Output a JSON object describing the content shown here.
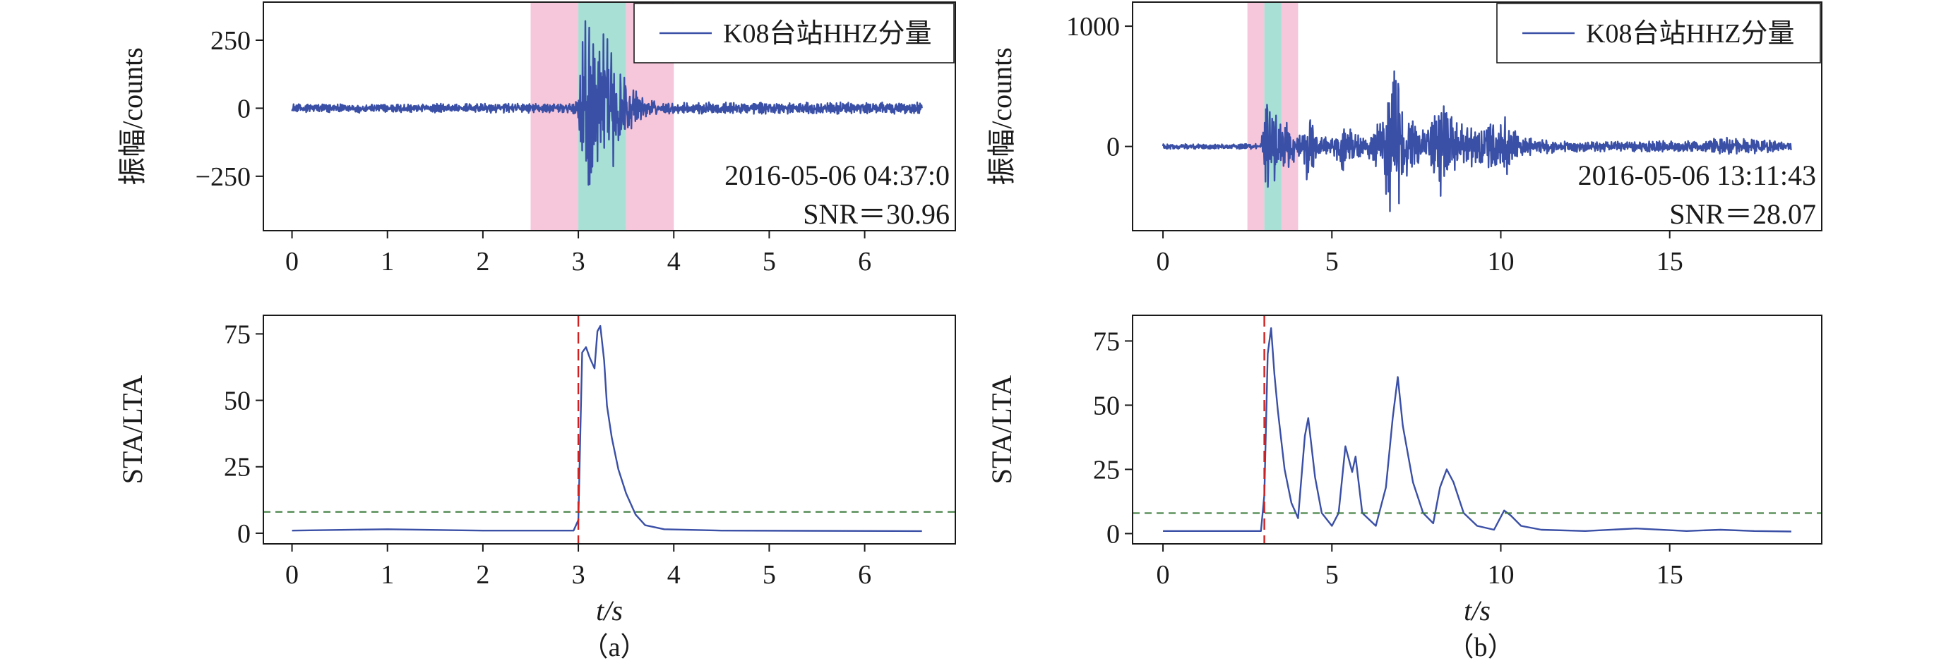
{
  "figure": {
    "captions": [
      "（a）",
      "（b）"
    ]
  },
  "chart_data": [
    {
      "id": "a-top",
      "type": "line",
      "ylabel": "振幅/counts",
      "xlim": [
        -0.3,
        6.95
      ],
      "ylim": [
        -450,
        390
      ],
      "xticks": [
        0,
        1,
        2,
        3,
        4,
        5,
        6
      ],
      "yticks": [
        250,
        0,
        -250
      ],
      "ytick_labels": [
        "250",
        "0",
        "−250"
      ],
      "legend": {
        "label": "K08台站HHZ分量",
        "position": "top-right"
      },
      "annotations": [
        "2016-05-06 04:37:0",
        "SNR＝30.96"
      ],
      "shaded_windows": [
        {
          "x": [
            2.5,
            3.0
          ],
          "color": "#f6c6da"
        },
        {
          "x": [
            3.0,
            3.5
          ],
          "color": "#a8e0d6"
        },
        {
          "x": [
            3.5,
            4.0
          ],
          "color": "#f6c6da"
        }
      ],
      "series": [
        {
          "color": "#3a4fa6",
          "duration": 6.6,
          "envelope": [
            {
              "t": 0,
              "a": 17
            },
            {
              "t": 2.9,
              "a": 18
            },
            {
              "t": 3.0,
              "a": 40
            },
            {
              "t": 3.05,
              "a": 330
            },
            {
              "t": 3.2,
              "a": 330
            },
            {
              "t": 3.35,
              "a": 230
            },
            {
              "t": 3.5,
              "a": 100
            },
            {
              "t": 3.7,
              "a": 40
            },
            {
              "t": 3.9,
              "a": 22
            },
            {
              "t": 6.6,
              "a": 22
            }
          ]
        }
      ]
    },
    {
      "id": "a-bottom",
      "type": "line",
      "xlabel": "t/s",
      "ylabel": "STA/LTA",
      "xlim": [
        -0.3,
        6.95
      ],
      "ylim": [
        -4,
        82
      ],
      "xticks": [
        0,
        1,
        2,
        3,
        4,
        5,
        6
      ],
      "yticks": [
        0,
        25,
        50,
        75
      ],
      "threshold": {
        "y": 8,
        "color": "#3a7a3a"
      },
      "trigger": {
        "x": 3.0,
        "color": "#d02020"
      },
      "series": [
        {
          "color": "#3a4fa6",
          "duration": 6.6,
          "points": [
            [
              0,
              1
            ],
            [
              1,
              1.5
            ],
            [
              2,
              1
            ],
            [
              2.95,
              1
            ],
            [
              3.0,
              5
            ],
            [
              3.04,
              68
            ],
            [
              3.08,
              70
            ],
            [
              3.12,
              66
            ],
            [
              3.17,
              62
            ],
            [
              3.2,
              76
            ],
            [
              3.23,
              78
            ],
            [
              3.27,
              65
            ],
            [
              3.3,
              48
            ],
            [
              3.35,
              36
            ],
            [
              3.42,
              24
            ],
            [
              3.5,
              15
            ],
            [
              3.6,
              7
            ],
            [
              3.7,
              3
            ],
            [
              3.9,
              1.5
            ],
            [
              4.5,
              1
            ],
            [
              6.6,
              0.8
            ]
          ]
        }
      ]
    },
    {
      "id": "b-top",
      "type": "line",
      "ylabel": "振幅/counts",
      "xlim": [
        -0.9,
        19.5
      ],
      "ylim": [
        -700,
        1200
      ],
      "xticks": [
        0,
        5,
        10,
        15
      ],
      "yticks": [
        1000,
        0
      ],
      "legend": {
        "label": "K08台站HHZ分量",
        "position": "top-right"
      },
      "annotations": [
        "2016-05-06 13:11:43",
        "SNR＝28.07"
      ],
      "shaded_windows": [
        {
          "x": [
            2.5,
            3.0
          ],
          "color": "#f6c6da"
        },
        {
          "x": [
            3.0,
            3.5
          ],
          "color": "#a8e0d6"
        },
        {
          "x": [
            3.5,
            4.0
          ],
          "color": "#f6c6da"
        }
      ],
      "series": [
        {
          "color": "#3a4fa6",
          "duration": 18.6,
          "envelope": [
            {
              "t": 0,
              "a": 20
            },
            {
              "t": 2.9,
              "a": 25
            },
            {
              "t": 3.05,
              "a": 420
            },
            {
              "t": 3.4,
              "a": 300
            },
            {
              "t": 3.8,
              "a": 150
            },
            {
              "t": 4.1,
              "a": 80
            },
            {
              "t": 4.3,
              "a": 380
            },
            {
              "t": 4.5,
              "a": 120
            },
            {
              "t": 5.0,
              "a": 60
            },
            {
              "t": 5.3,
              "a": 250
            },
            {
              "t": 5.6,
              "a": 140
            },
            {
              "t": 6.0,
              "a": 80
            },
            {
              "t": 6.5,
              "a": 300
            },
            {
              "t": 6.9,
              "a": 900
            },
            {
              "t": 7.1,
              "a": 300
            },
            {
              "t": 7.8,
              "a": 120
            },
            {
              "t": 8.2,
              "a": 450
            },
            {
              "t": 8.6,
              "a": 250
            },
            {
              "t": 9.5,
              "a": 150
            },
            {
              "t": 10.2,
              "a": 320
            },
            {
              "t": 10.6,
              "a": 80
            },
            {
              "t": 12.0,
              "a": 45
            },
            {
              "t": 14.0,
              "a": 50
            },
            {
              "t": 16.0,
              "a": 45
            },
            {
              "t": 16.5,
              "a": 80
            },
            {
              "t": 17.5,
              "a": 60
            },
            {
              "t": 18.6,
              "a": 40
            }
          ]
        }
      ]
    },
    {
      "id": "b-bottom",
      "type": "line",
      "xlabel": "t/s",
      "ylabel": "STA/LTA",
      "xlim": [
        -0.9,
        19.5
      ],
      "ylim": [
        -4,
        85
      ],
      "xticks": [
        0,
        5,
        10,
        15
      ],
      "yticks": [
        0,
        25,
        50,
        75
      ],
      "threshold": {
        "y": 8,
        "color": "#3a7a3a"
      },
      "trigger": {
        "x": 3.0,
        "color": "#d02020"
      },
      "series": [
        {
          "color": "#3a4fa6",
          "duration": 18.6,
          "points": [
            [
              0,
              1
            ],
            [
              2.9,
              1
            ],
            [
              3.0,
              15
            ],
            [
              3.1,
              70
            ],
            [
              3.2,
              80
            ],
            [
              3.3,
              62
            ],
            [
              3.4,
              48
            ],
            [
              3.6,
              25
            ],
            [
              3.8,
              12
            ],
            [
              4.0,
              6
            ],
            [
              4.2,
              38
            ],
            [
              4.3,
              45
            ],
            [
              4.5,
              22
            ],
            [
              4.7,
              8
            ],
            [
              5.0,
              3
            ],
            [
              5.2,
              8
            ],
            [
              5.4,
              34
            ],
            [
              5.6,
              24
            ],
            [
              5.7,
              30
            ],
            [
              5.9,
              8
            ],
            [
              6.3,
              3
            ],
            [
              6.6,
              18
            ],
            [
              6.8,
              45
            ],
            [
              6.95,
              61
            ],
            [
              7.1,
              42
            ],
            [
              7.4,
              20
            ],
            [
              7.7,
              8
            ],
            [
              8.0,
              4
            ],
            [
              8.2,
              18
            ],
            [
              8.4,
              25
            ],
            [
              8.6,
              20
            ],
            [
              8.9,
              8
            ],
            [
              9.3,
              3
            ],
            [
              9.8,
              1.5
            ],
            [
              10.1,
              9
            ],
            [
              10.3,
              7
            ],
            [
              10.6,
              3
            ],
            [
              11.2,
              1.5
            ],
            [
              12.5,
              1
            ],
            [
              14.0,
              2
            ],
            [
              15.5,
              1
            ],
            [
              16.5,
              1.5
            ],
            [
              17.5,
              1
            ],
            [
              18.6,
              0.8
            ]
          ]
        }
      ]
    }
  ]
}
